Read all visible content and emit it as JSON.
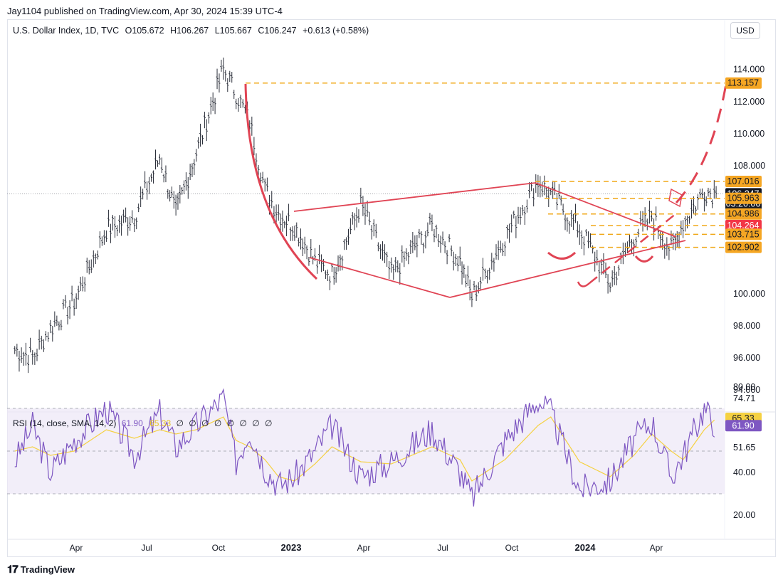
{
  "header": {
    "published": "Jay1104 published on TradingView.com, Apr 30, 2024 15:39 UTC-4"
  },
  "legend": {
    "symbol": "U.S. Dollar Index, 1D, TVC",
    "open": "O105.672",
    "high": "H106.267",
    "low": "L105.667",
    "close": "C106.247",
    "change": "+0.613 (+0.58%)"
  },
  "currency_button": "USD",
  "price_axis": {
    "ticks": [
      "114.000",
      "112.000",
      "110.000",
      "108.000",
      "106.000",
      "104.000",
      "102.000",
      "100.000",
      "98.000",
      "96.000",
      "94.000"
    ],
    "tick_values": [
      114,
      112,
      110,
      108,
      106,
      104,
      102,
      100,
      98,
      96,
      94
    ],
    "hidden_ticks": [
      106,
      104,
      102
    ],
    "labels": [
      {
        "text": "113.157",
        "value": 113.157,
        "kind": "orange"
      },
      {
        "text": "107.016",
        "value": 107.016,
        "kind": "orange"
      },
      {
        "text": "106.247",
        "value": 106.247,
        "kind": "current"
      },
      {
        "text": "03:20:06",
        "kind": "countdown"
      },
      {
        "text": "105.963",
        "value": 105.963,
        "kind": "orange"
      },
      {
        "text": "104.986",
        "value": 104.986,
        "kind": "orange"
      },
      {
        "text": "104.264",
        "value": 104.264,
        "kind": "red"
      },
      {
        "text": "103.715",
        "value": 103.715,
        "kind": "orange"
      },
      {
        "text": "102.902",
        "value": 102.902,
        "kind": "orange"
      }
    ],
    "current_price": 106.247
  },
  "time_axis": {
    "labels": [
      {
        "text": "Apr",
        "bold": false
      },
      {
        "text": "Jul",
        "bold": false
      },
      {
        "text": "Oct",
        "bold": false
      },
      {
        "text": "2023",
        "bold": true
      },
      {
        "text": "Apr",
        "bold": false
      },
      {
        "text": "Jul",
        "bold": false
      },
      {
        "text": "Oct",
        "bold": false
      },
      {
        "text": "2024",
        "bold": true
      },
      {
        "text": "Apr",
        "bold": false
      }
    ]
  },
  "rsi": {
    "title": "RSI (14, close, SMA, 14, 2)",
    "value": "61.90",
    "sma_value": "65.33",
    "na_values": "∅ ∅ ∅ ∅ ∅ ∅ ∅ ∅",
    "axis_ticks": [
      "80.00",
      "74.71",
      "51.65",
      "40.00",
      "20.00"
    ],
    "axis_values": [
      80,
      74.71,
      51.65,
      40,
      20
    ],
    "badges": [
      {
        "text": "65.33",
        "value": 65.33,
        "kind": "sma"
      },
      {
        "text": "61.90",
        "value": 61.9,
        "kind": "rsi"
      }
    ],
    "band_upper": 70,
    "band_mid": 50,
    "band_lower": 30
  },
  "chart_data": {
    "type": "candlestick",
    "title": "U.S. Dollar Index, 1D, TVC",
    "ylim": [
      93,
      116
    ],
    "x_dates": [
      "2022-01-24",
      "2022-02-14",
      "2022-03-07",
      "2022-04-04",
      "2022-05-12",
      "2022-06-14",
      "2022-07-14",
      "2022-08-02",
      "2022-08-26",
      "2022-09-27",
      "2022-10-12",
      "2022-10-28",
      "2022-11-15",
      "2022-12-01",
      "2022-12-20",
      "2023-01-13",
      "2023-02-02",
      "2023-03-08",
      "2023-04-13",
      "2023-05-31",
      "2023-07-03",
      "2023-07-17",
      "2023-08-25",
      "2023-10-03",
      "2023-10-18",
      "2023-11-21",
      "2023-12-27",
      "2024-01-24",
      "2024-02-14",
      "2024-03-08",
      "2024-03-22",
      "2024-04-16",
      "2024-04-30"
    ],
    "close_path": [
      96.5,
      96.0,
      97.8,
      99.5,
      104.0,
      104.8,
      108.5,
      105.0,
      108.8,
      114.0,
      112.5,
      110.7,
      106.5,
      105.0,
      104.2,
      102.0,
      101.2,
      105.5,
      101.2,
      104.2,
      102.0,
      99.8,
      103.5,
      107.0,
      106.2,
      104.0,
      100.6,
      103.6,
      104.8,
      102.7,
      104.4,
      106.4,
      106.247
    ],
    "ohlc_last": {
      "open": 105.672,
      "high": 106.267,
      "low": 105.667,
      "close": 106.247
    },
    "drawings": {
      "horizontal_levels": [
        113.157,
        107.016,
        105.963,
        104.986,
        104.264,
        103.715,
        102.902
      ],
      "projected_target": 113.157
    },
    "rsi_series": [
      45,
      62,
      40,
      55,
      70,
      48,
      68,
      52,
      62,
      75,
      45,
      60,
      42,
      34,
      38,
      50,
      62,
      38,
      45,
      60,
      40,
      28,
      55,
      74,
      68,
      32,
      36,
      55,
      64,
      38,
      48,
      70,
      61.9
    ],
    "rsi_sma_series": [
      50,
      52,
      48,
      50,
      60,
      56,
      60,
      58,
      60,
      66,
      55,
      52,
      46,
      38,
      36,
      44,
      52,
      45,
      44,
      52,
      46,
      36,
      46,
      62,
      66,
      45,
      38,
      48,
      58,
      50,
      46,
      60,
      65.33
    ]
  }
}
